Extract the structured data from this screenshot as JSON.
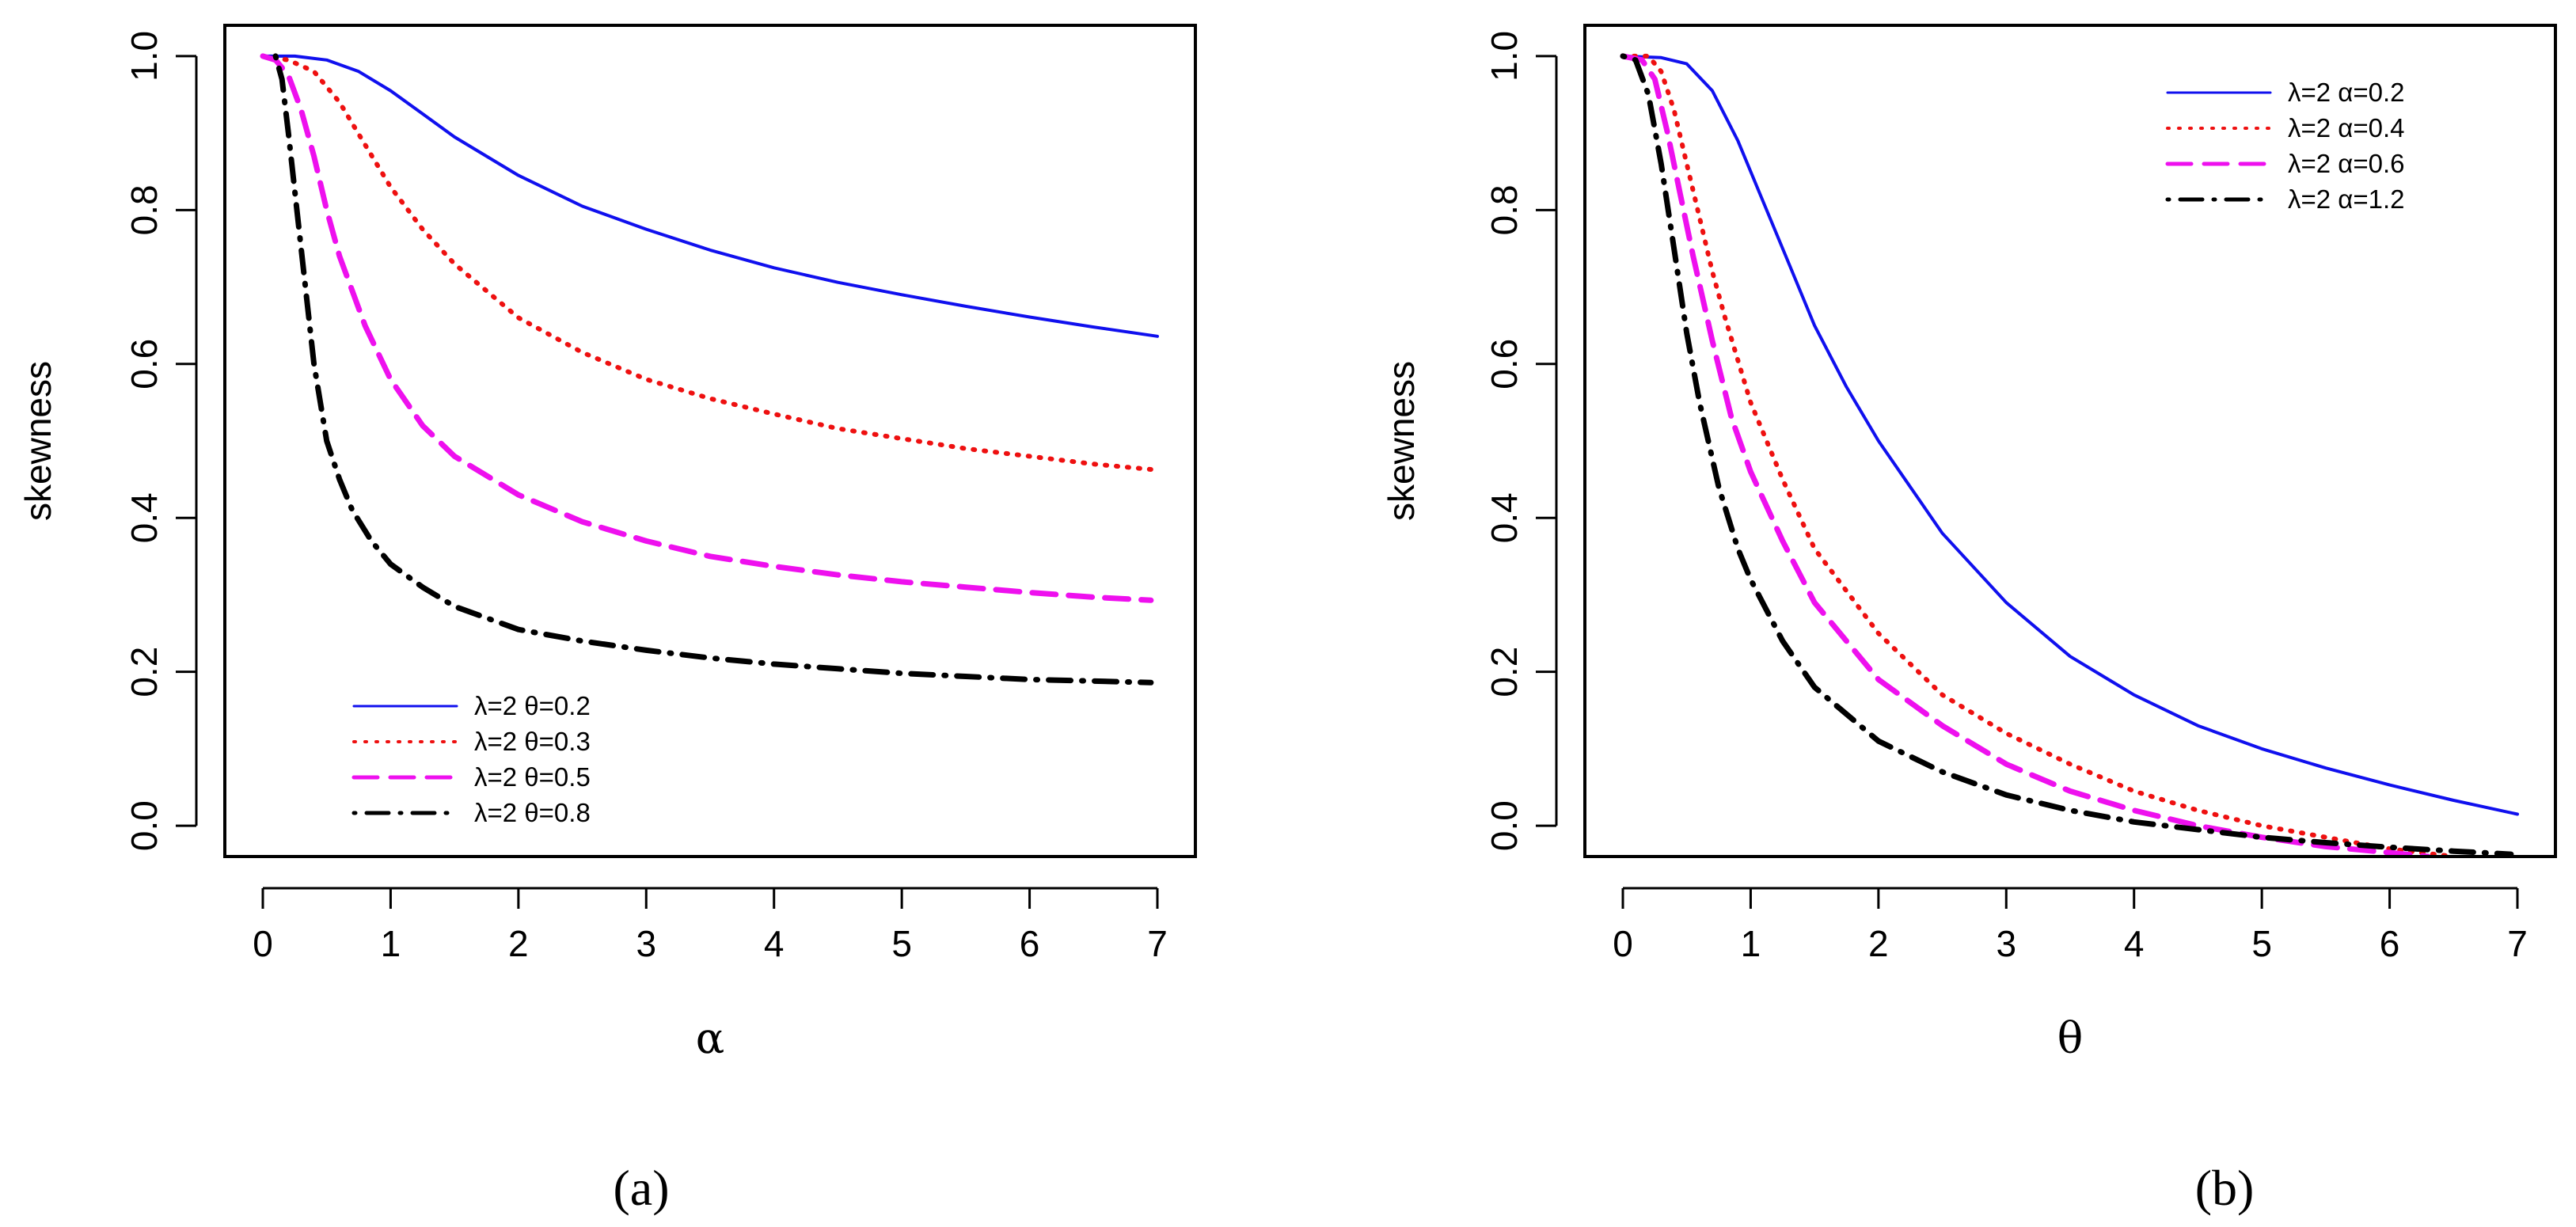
{
  "chart_data": [
    {
      "type": "line",
      "panel_label": "(a)",
      "xlabel": "α",
      "ylabel": "skewness",
      "xlim": [
        0,
        7
      ],
      "ylim": [
        -0.04,
        1.04
      ],
      "x_ticks": [
        "0",
        "1",
        "2",
        "3",
        "4",
        "5",
        "6",
        "7"
      ],
      "y_ticks": [
        "0.0",
        "0.2",
        "0.4",
        "0.6",
        "0.8",
        "1.0"
      ],
      "legend_position": "bottom-left",
      "series": [
        {
          "name": "λ=2  θ=0.2",
          "color": "#1010ee",
          "dash": "solid",
          "x": [
            0,
            0.25,
            0.5,
            0.75,
            1,
            1.25,
            1.5,
            2,
            2.5,
            3,
            3.5,
            4,
            4.5,
            5,
            5.5,
            6,
            6.5,
            7
          ],
          "y": [
            1.0,
            1.0,
            0.995,
            0.98,
            0.955,
            0.925,
            0.895,
            0.845,
            0.805,
            0.775,
            0.748,
            0.725,
            0.706,
            0.69,
            0.675,
            0.661,
            0.648,
            0.636
          ]
        },
        {
          "name": "λ=2  θ=0.3",
          "color": "#ee1010",
          "dash": "dotted",
          "x": [
            0,
            0.2,
            0.4,
            0.6,
            0.8,
            1,
            1.25,
            1.5,
            2,
            2.5,
            3,
            3.5,
            4,
            4.5,
            5,
            5.5,
            6,
            6.5,
            6.95
          ],
          "y": [
            1.0,
            0.995,
            0.98,
            0.94,
            0.885,
            0.83,
            0.775,
            0.73,
            0.66,
            0.615,
            0.58,
            0.555,
            0.535,
            0.516,
            0.503,
            0.49,
            0.48,
            0.47,
            0.463
          ]
        },
        {
          "name": "λ=2  θ=0.5",
          "color": "#ee10ee",
          "dash": "dashed",
          "x": [
            0,
            0.1,
            0.2,
            0.3,
            0.4,
            0.5,
            0.6,
            0.8,
            1,
            1.25,
            1.5,
            2,
            2.5,
            3,
            3.5,
            4,
            4.5,
            5,
            5.5,
            6,
            6.5,
            6.95
          ],
          "y": [
            1.0,
            0.995,
            0.975,
            0.93,
            0.87,
            0.8,
            0.74,
            0.65,
            0.58,
            0.52,
            0.48,
            0.43,
            0.395,
            0.37,
            0.35,
            0.337,
            0.326,
            0.317,
            0.31,
            0.303,
            0.297,
            0.293
          ]
        },
        {
          "name": "λ=2  θ=0.8",
          "color": "#000000",
          "dash": "dotdash",
          "x": [
            0.1,
            0.15,
            0.2,
            0.3,
            0.4,
            0.5,
            0.6,
            0.7,
            0.85,
            1,
            1.25,
            1.5,
            2,
            2.5,
            3,
            3.5,
            4,
            4.5,
            5,
            5.5,
            6,
            6.5,
            6.95
          ],
          "y": [
            1.0,
            0.97,
            0.9,
            0.75,
            0.6,
            0.5,
            0.45,
            0.41,
            0.37,
            0.34,
            0.31,
            0.285,
            0.255,
            0.24,
            0.228,
            0.218,
            0.21,
            0.204,
            0.198,
            0.194,
            0.19,
            0.188,
            0.186
          ]
        }
      ]
    },
    {
      "type": "line",
      "panel_label": "(b)",
      "xlabel": "θ",
      "ylabel": "skewness",
      "xlim": [
        0,
        7
      ],
      "ylim": [
        -0.04,
        1.04
      ],
      "x_ticks": [
        "0",
        "1",
        "2",
        "3",
        "4",
        "5",
        "6",
        "7"
      ],
      "y_ticks": [
        "0.0",
        "0.2",
        "0.4",
        "0.6",
        "0.8",
        "1.0"
      ],
      "legend_position": "top-right",
      "series": [
        {
          "name": "λ=2  α=0.2",
          "color": "#1010ee",
          "dash": "solid",
          "x": [
            0,
            0.3,
            0.5,
            0.7,
            0.9,
            1.1,
            1.3,
            1.5,
            1.75,
            2,
            2.5,
            3,
            3.5,
            4,
            4.5,
            5,
            5.5,
            6,
            6.5,
            7
          ],
          "y": [
            1.0,
            0.998,
            0.99,
            0.955,
            0.89,
            0.81,
            0.73,
            0.65,
            0.57,
            0.5,
            0.38,
            0.29,
            0.22,
            0.17,
            0.13,
            0.1,
            0.075,
            0.053,
            0.033,
            0.015
          ]
        },
        {
          "name": "λ=2  α=0.4",
          "color": "#ee1010",
          "dash": "dotted",
          "x": [
            0,
            0.2,
            0.3,
            0.4,
            0.5,
            0.6,
            0.7,
            0.8,
            1,
            1.25,
            1.5,
            2,
            2.5,
            3,
            3.5,
            4,
            4.5,
            5,
            5.5,
            6,
            6.5
          ],
          "y": [
            1.0,
            1.0,
            0.98,
            0.93,
            0.86,
            0.79,
            0.72,
            0.66,
            0.55,
            0.45,
            0.36,
            0.25,
            0.17,
            0.12,
            0.08,
            0.045,
            0.02,
            0.0,
            -0.015,
            -0.03,
            -0.04
          ]
        },
        {
          "name": "λ=2  α=0.6",
          "color": "#ee10ee",
          "dash": "dashed",
          "x": [
            0,
            0.15,
            0.25,
            0.35,
            0.45,
            0.55,
            0.7,
            0.85,
            1,
            1.25,
            1.5,
            2,
            2.5,
            3,
            3.5,
            4,
            4.5,
            5,
            5.5,
            6,
            6.3
          ],
          "y": [
            1.0,
            0.995,
            0.97,
            0.9,
            0.82,
            0.74,
            0.63,
            0.53,
            0.46,
            0.37,
            0.29,
            0.19,
            0.13,
            0.08,
            0.045,
            0.02,
            0.0,
            -0.015,
            -0.027,
            -0.035,
            -0.04
          ]
        },
        {
          "name": "λ=2  α=1.2",
          "color": "#000000",
          "dash": "dotdash",
          "x": [
            0,
            0.1,
            0.2,
            0.3,
            0.4,
            0.5,
            0.6,
            0.75,
            0.9,
            1,
            1.25,
            1.5,
            2,
            2.5,
            3,
            3.5,
            4,
            4.5,
            5,
            5.5,
            6,
            6.5,
            6.95
          ],
          "y": [
            1.0,
            0.995,
            0.95,
            0.86,
            0.75,
            0.64,
            0.55,
            0.44,
            0.36,
            0.32,
            0.24,
            0.18,
            0.11,
            0.07,
            0.04,
            0.02,
            0.005,
            -0.005,
            -0.015,
            -0.022,
            -0.028,
            -0.033,
            -0.037
          ]
        }
      ]
    }
  ]
}
